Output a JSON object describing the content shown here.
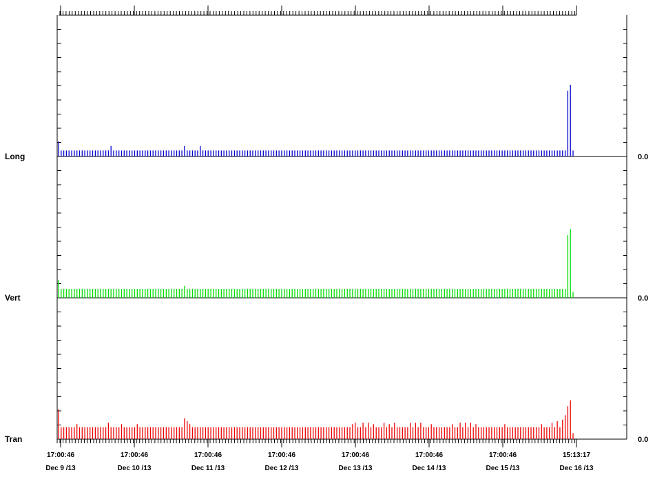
{
  "chart_data": {
    "type": "bar",
    "title": "",
    "xlabel": "",
    "ylabel": "",
    "x_tick_labels": [
      {
        "time": "17:00:46",
        "date": "Dec 9 /13"
      },
      {
        "time": "17:00:46",
        "date": "Dec 10 /13"
      },
      {
        "time": "17:00:46",
        "date": "Dec 11 /13"
      },
      {
        "time": "17:00:46",
        "date": "Dec 12 /13"
      },
      {
        "time": "17:00:46",
        "date": "Dec 13 /13"
      },
      {
        "time": "17:00:46",
        "date": "Dec 14 /13"
      },
      {
        "time": "17:00:46",
        "date": "Dec 15 /13"
      },
      {
        "time": "15:13:17",
        "date": "Dec 16 /13"
      }
    ],
    "series": [
      {
        "name": "Long",
        "value_label": "0.0",
        "color": "#0000cc",
        "baseline_value": 0.2,
        "values": {
          "0": 0.5,
          "20": 0.35,
          "48": 0.35,
          "54": 0.35,
          "194": 2.2,
          "195": 2.4,
          "196": 0.2
        }
      },
      {
        "name": "Vert",
        "value_label": "0.0",
        "color": "#00dd00",
        "baseline_value": 0.3,
        "values": {
          "0": 0.6,
          "48": 0.4,
          "194": 2.1,
          "195": 2.3,
          "196": 0.2
        }
      },
      {
        "name": "Tran",
        "value_label": "0.0",
        "color": "#ee0000",
        "baseline_value": 0.4,
        "values": {
          "0": 1.0,
          "7": 0.5,
          "19": 0.55,
          "24": 0.5,
          "30": 0.5,
          "48": 0.7,
          "49": 0.6,
          "50": 0.5,
          "112": 0.5,
          "113": 0.55,
          "116": 0.55,
          "118": 0.55,
          "120": 0.5,
          "124": 0.55,
          "126": 0.5,
          "128": 0.55,
          "134": 0.55,
          "136": 0.55,
          "138": 0.55,
          "142": 0.5,
          "150": 0.5,
          "153": 0.55,
          "155": 0.55,
          "157": 0.55,
          "159": 0.5,
          "170": 0.5,
          "184": 0.5,
          "188": 0.55,
          "190": 0.6,
          "192": 0.65,
          "193": 0.8,
          "194": 1.1,
          "195": 1.3,
          "196": 0.2
        }
      }
    ]
  }
}
